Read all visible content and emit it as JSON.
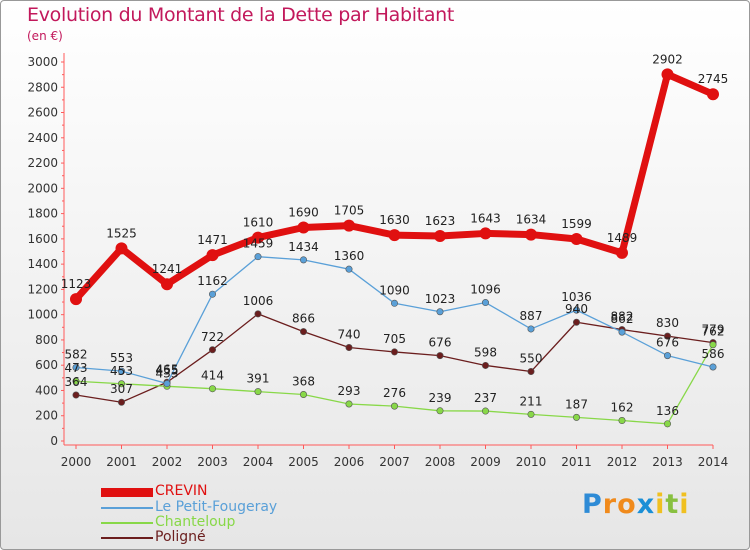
{
  "chart_data": {
    "type": "line",
    "title": "Evolution du Montant de la Dette par Habitant",
    "unit_label": "(en €)",
    "x": [
      "2000",
      "2001",
      "2002",
      "2003",
      "2004",
      "2005",
      "2006",
      "2007",
      "2008",
      "2009",
      "2010",
      "2011",
      "2012",
      "2013",
      "2014"
    ],
    "y_ticks": [
      "0",
      "200",
      "400",
      "600",
      "800",
      "1000",
      "1200",
      "1400",
      "1600",
      "1800",
      "2000",
      "2200",
      "2400",
      "2600",
      "2800",
      "3000"
    ],
    "ylim": [
      0,
      3000
    ],
    "grid": false,
    "legend_position": "bottom-left",
    "series": [
      {
        "name": "CREVIN",
        "color": "#e01010",
        "values": [
          1123,
          1525,
          1241,
          1471,
          1610,
          1690,
          1705,
          1630,
          1623,
          1643,
          1634,
          1599,
          1489,
          2902,
          2745
        ]
      },
      {
        "name": "Le Petit-Fougeray",
        "color": "#5aa0d8",
        "values": [
          582,
          553,
          455,
          1162,
          1459,
          1434,
          1360,
          1090,
          1023,
          1096,
          887,
          1036,
          862,
          676,
          586
        ]
      },
      {
        "name": "Chanteloup",
        "color": "#88d848",
        "values": [
          473,
          453,
          433,
          414,
          391,
          368,
          293,
          276,
          239,
          237,
          211,
          187,
          162,
          136,
          762
        ]
      },
      {
        "name": "Poligné",
        "color": "#6b1e1e",
        "values": [
          364,
          307,
          465,
          722,
          1006,
          866,
          740,
          705,
          676,
          598,
          550,
          940,
          882,
          830,
          779
        ]
      }
    ]
  },
  "logo": {
    "letters": [
      "P",
      "r",
      "o",
      "x",
      "i",
      "t",
      "i"
    ],
    "colors": [
      "#2e8bd6",
      "#f08a1c",
      "#f08a1c",
      "#1a8fd6",
      "#f0c020",
      "#88c040",
      "#f0c020"
    ]
  }
}
